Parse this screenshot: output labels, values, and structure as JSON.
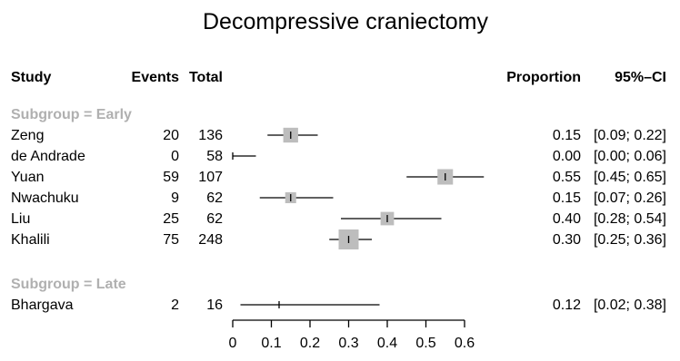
{
  "chart_data": {
    "type": "forest",
    "title": "Decompressive craniectomy",
    "headers": {
      "study": "Study",
      "events": "Events",
      "total": "Total",
      "proportion": "Proportion",
      "ci": "95%–CI"
    },
    "xlim": [
      0,
      0.6
    ],
    "ticks": [
      0,
      0.1,
      0.2,
      0.3,
      0.4,
      0.5,
      0.6
    ],
    "tick_labels": [
      "0",
      "0.1",
      "0.2",
      "0.3",
      "0.4",
      "0.5",
      "0.6"
    ],
    "groups": [
      {
        "label": "Subgroup = Early",
        "studies": [
          {
            "study": "Zeng",
            "events": "20",
            "total": "136",
            "estimate": 0.15,
            "lower": 0.09,
            "upper": 0.22,
            "weight": 0.55,
            "prop_text": "0.15",
            "ci_text": "[0.09; 0.22]"
          },
          {
            "study": "de Andrade",
            "events": "0",
            "total": "58",
            "estimate": 0.0,
            "lower": 0.0,
            "upper": 0.06,
            "weight": 0.0,
            "prop_text": "0.00",
            "ci_text": "[0.00; 0.06]"
          },
          {
            "study": "Yuan",
            "events": "59",
            "total": "107",
            "estimate": 0.55,
            "lower": 0.45,
            "upper": 0.65,
            "weight": 0.6,
            "prop_text": "0.55",
            "ci_text": "[0.45; 0.65]"
          },
          {
            "study": "Nwachuku",
            "events": "9",
            "total": "62",
            "estimate": 0.15,
            "lower": 0.07,
            "upper": 0.26,
            "weight": 0.3,
            "prop_text": "0.15",
            "ci_text": "[0.07; 0.26]"
          },
          {
            "study": "Liu",
            "events": "25",
            "total": "62",
            "estimate": 0.4,
            "lower": 0.28,
            "upper": 0.54,
            "weight": 0.45,
            "prop_text": "0.40",
            "ci_text": "[0.28; 0.54]"
          },
          {
            "study": "Khalili",
            "events": "75",
            "total": "248",
            "estimate": 0.3,
            "lower": 0.25,
            "upper": 0.36,
            "weight": 1.0,
            "prop_text": "0.30",
            "ci_text": "[0.25; 0.36]"
          }
        ]
      },
      {
        "label": "Subgroup = Late",
        "studies": [
          {
            "study": "Bhargava",
            "events": "2",
            "total": "16",
            "estimate": 0.12,
            "lower": 0.02,
            "upper": 0.38,
            "weight": 0.0,
            "prop_text": "0.12",
            "ci_text": "[0.02; 0.38]"
          }
        ]
      }
    ],
    "colors": {
      "square": "#bdbdbd",
      "subgroup_label": "#b0b0b0",
      "line": "#000000"
    }
  }
}
